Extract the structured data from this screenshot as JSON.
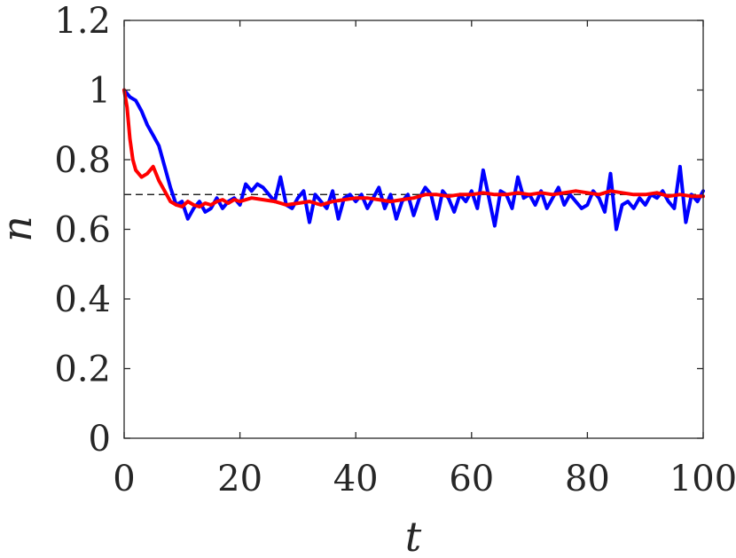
{
  "chart_data": {
    "type": "line",
    "xlabel": "t",
    "ylabel": "n",
    "xlim": [
      0,
      100
    ],
    "ylim": [
      0,
      1.2
    ],
    "xticks": [
      "0",
      "20",
      "40",
      "60",
      "80",
      "100"
    ],
    "yticks": [
      "0",
      "0.2",
      "0.4",
      "0.6",
      "0.8",
      "1",
      "1.2"
    ],
    "reference_line": {
      "y": 0.7,
      "style": "dashed",
      "color": "#000000"
    },
    "grid": false,
    "legend": "none",
    "series": [
      {
        "color": "#0000ff",
        "x": [
          0,
          0.5,
          1,
          2,
          3,
          4,
          5,
          6,
          7,
          8,
          9,
          10,
          11,
          12,
          13,
          14,
          15,
          16,
          17,
          18,
          19,
          20,
          21,
          22,
          23,
          24,
          25,
          26,
          27,
          28,
          29,
          30,
          31,
          32,
          33,
          34,
          35,
          36,
          37,
          38,
          39,
          40,
          41,
          42,
          43,
          44,
          45,
          46,
          47,
          48,
          49,
          50,
          51,
          52,
          53,
          54,
          55,
          56,
          57,
          58,
          59,
          60,
          61,
          62,
          63,
          64,
          65,
          66,
          67,
          68,
          69,
          70,
          71,
          72,
          73,
          74,
          75,
          76,
          77,
          78,
          79,
          80,
          81,
          82,
          83,
          84,
          85,
          86,
          87,
          88,
          89,
          90,
          91,
          92,
          93,
          94,
          95,
          96,
          97,
          98,
          99,
          100
        ],
        "y": [
          1.0,
          0.99,
          0.98,
          0.97,
          0.94,
          0.9,
          0.87,
          0.84,
          0.78,
          0.72,
          0.67,
          0.68,
          0.63,
          0.66,
          0.68,
          0.65,
          0.66,
          0.69,
          0.66,
          0.68,
          0.69,
          0.67,
          0.73,
          0.71,
          0.73,
          0.72,
          0.7,
          0.68,
          0.75,
          0.67,
          0.66,
          0.69,
          0.71,
          0.62,
          0.7,
          0.68,
          0.66,
          0.71,
          0.63,
          0.69,
          0.7,
          0.68,
          0.7,
          0.66,
          0.69,
          0.72,
          0.66,
          0.7,
          0.63,
          0.68,
          0.7,
          0.64,
          0.69,
          0.72,
          0.7,
          0.63,
          0.71,
          0.69,
          0.65,
          0.7,
          0.68,
          0.71,
          0.66,
          0.77,
          0.69,
          0.61,
          0.71,
          0.7,
          0.66,
          0.75,
          0.69,
          0.7,
          0.67,
          0.71,
          0.66,
          0.69,
          0.72,
          0.67,
          0.7,
          0.68,
          0.66,
          0.67,
          0.71,
          0.69,
          0.65,
          0.76,
          0.6,
          0.67,
          0.68,
          0.66,
          0.69,
          0.67,
          0.7,
          0.69,
          0.71,
          0.68,
          0.66,
          0.78,
          0.62,
          0.7,
          0.68,
          0.71
        ]
      },
      {
        "color": "#ff0000",
        "x": [
          0,
          0.5,
          1,
          1.5,
          2,
          3,
          4,
          5,
          6,
          7,
          8,
          9,
          10,
          11,
          12,
          13,
          14,
          15,
          16,
          17,
          18,
          19,
          20,
          22,
          24,
          26,
          28,
          30,
          32,
          34,
          36,
          38,
          40,
          42,
          44,
          46,
          48,
          50,
          52,
          54,
          56,
          58,
          60,
          62,
          64,
          66,
          68,
          70,
          72,
          74,
          76,
          78,
          80,
          82,
          84,
          86,
          88,
          90,
          92,
          94,
          96,
          98,
          100
        ],
        "y": [
          1.0,
          0.95,
          0.86,
          0.8,
          0.77,
          0.75,
          0.76,
          0.78,
          0.74,
          0.71,
          0.68,
          0.67,
          0.665,
          0.68,
          0.67,
          0.665,
          0.675,
          0.67,
          0.68,
          0.685,
          0.675,
          0.685,
          0.68,
          0.69,
          0.685,
          0.68,
          0.67,
          0.675,
          0.68,
          0.67,
          0.68,
          0.685,
          0.69,
          0.69,
          0.685,
          0.68,
          0.685,
          0.69,
          0.7,
          0.7,
          0.695,
          0.7,
          0.7,
          0.705,
          0.7,
          0.7,
          0.705,
          0.7,
          0.705,
          0.7,
          0.705,
          0.71,
          0.705,
          0.7,
          0.71,
          0.705,
          0.7,
          0.7,
          0.705,
          0.695,
          0.7,
          0.695,
          0.695
        ]
      }
    ]
  }
}
